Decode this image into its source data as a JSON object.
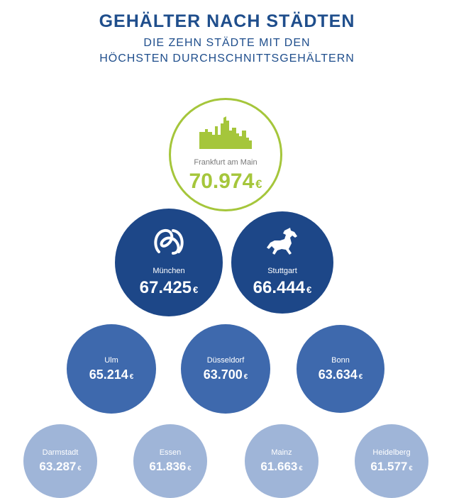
{
  "header": {
    "title": "GEHÄLTER NACH STÄDTEN",
    "subtitle_line1": "DIE ZEHN STÄDTE MIT DEN",
    "subtitle_line2": "HÖCHSTEN DURCHSCHNITTSGEHÄLTERN"
  },
  "colors": {
    "title": "#1f4e8c",
    "top_tier_outline": "#a5c63b",
    "tier2": "#1d4788",
    "tier3": "#3e69ad",
    "tier4": "#9fb5d8"
  },
  "currency_symbol": "€",
  "chart_data": {
    "type": "bubble",
    "title": "GEHÄLTER NACH STÄDTEN",
    "subtitle": "DIE ZEHN STÄDTE MIT DEN HÖCHSTEN DURCHSCHNITTSGEHÄLTERN",
    "unit": "€",
    "categories": [
      "Frankfurt am Main",
      "München",
      "Stuttgart",
      "Ulm",
      "Düsseldorf",
      "Bonn",
      "Darmstadt",
      "Essen",
      "Mainz",
      "Heidelberg"
    ],
    "values": [
      70974,
      67425,
      66444,
      65214,
      63700,
      63634,
      63287,
      61836,
      61663,
      61577
    ],
    "value_labels": [
      "70.974",
      "67.425",
      "66.444",
      "65.214",
      "63.700",
      "63.634",
      "63.287",
      "61.836",
      "61.663",
      "61.577"
    ],
    "icons": [
      "skyline-icon",
      "pretzel-icon",
      "horse-icon",
      "",
      "",
      "",
      "",
      "",
      "",
      ""
    ]
  }
}
